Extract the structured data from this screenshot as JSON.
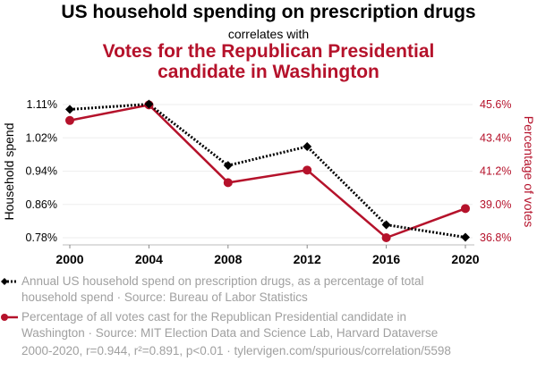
{
  "title": "US household spending on prescription drugs",
  "subtitle": "correlates with",
  "title2_line1": "Votes for the Republican Presidential",
  "title2_line2": "candidate in Washington",
  "legend": [
    {
      "line1": "Annual US household spend on prescription drugs, as a percentage of total",
      "line2": "household spend · Source: Bureau of Labor Statistics"
    },
    {
      "line1": "Percentage of all votes cast for the Republican Presidential candidate in",
      "line2": "Washington · Source: MIT Election Data and Science Lab, Harvard Dataverse"
    }
  ],
  "footer": "2000-2020, r=0.944, r²=0.891, p<0.01 · tylervigen.com/spurious/correlation/5598",
  "chart_data": {
    "type": "line",
    "x": [
      2000,
      2004,
      2008,
      2012,
      2016,
      2020
    ],
    "xticks": [
      "2000",
      "2004",
      "2008",
      "2012",
      "2016",
      "2020"
    ],
    "ylabel": "Household spend",
    "y2label": "Percentage of votes",
    "ylim": [
      0.78,
      1.11
    ],
    "y2lim": [
      36.8,
      45.6
    ],
    "yticks": [
      "1.11%",
      "1.02%",
      "0.94%",
      "0.86%",
      "0.78%"
    ],
    "y2ticks": [
      "45.6%",
      "43.4%",
      "41.2%",
      "39.0%",
      "36.8%"
    ],
    "series": [
      {
        "name": "Household spend",
        "axis": "left",
        "color": "#000000",
        "values": [
          1.098,
          1.111,
          0.959,
          1.006,
          0.812,
          0.781
        ]
      },
      {
        "name": "Percentage of votes",
        "axis": "right",
        "color": "#b5122b",
        "values": [
          44.55,
          45.58,
          40.44,
          41.27,
          36.8,
          38.73
        ]
      }
    ]
  }
}
